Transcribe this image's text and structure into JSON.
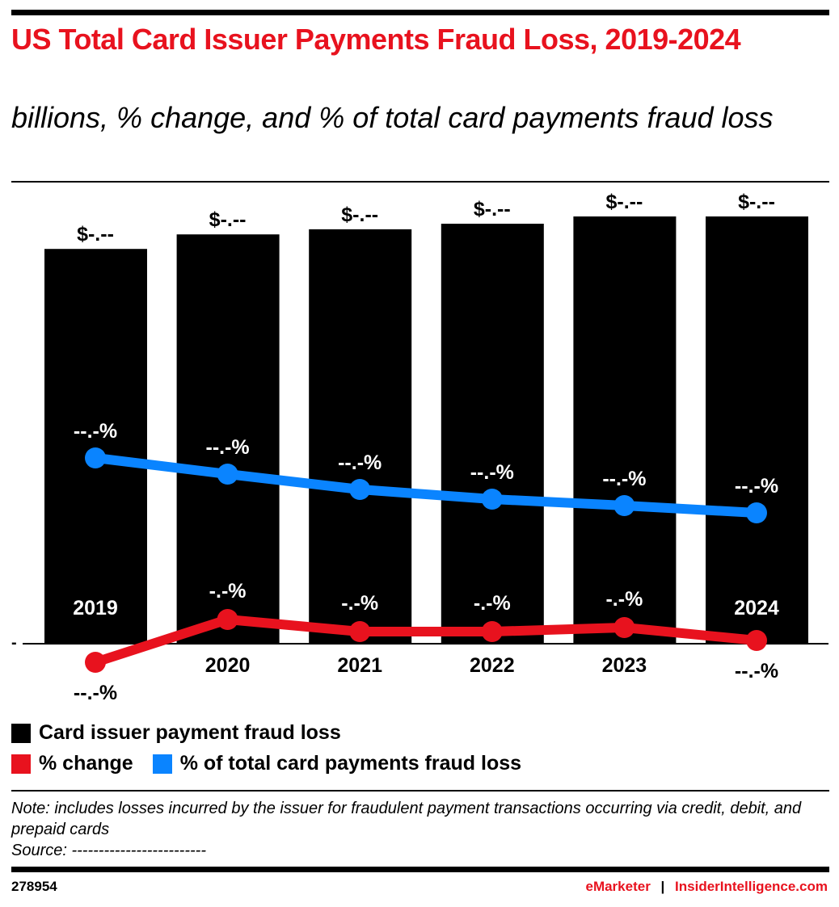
{
  "title": "US Total Card Issuer Payments Fraud Loss, 2019-2024",
  "subtitle": "billions, % change, and % of total card payments fraud loss",
  "colors": {
    "bars": "#000000",
    "pct_change": "#e8121e",
    "pct_total": "#0a84ff",
    "title": "#e8121e"
  },
  "chart_data": {
    "type": "bar",
    "categories": [
      "2019",
      "2020",
      "2021",
      "2022",
      "2023",
      "2024"
    ],
    "y_tick_labels": [
      "-"
    ],
    "grid": false,
    "legend_placement": "bottom",
    "series": [
      {
        "name": "Card issuer payment fraud loss",
        "type": "bar",
        "values": [
          9.24,
          9.58,
          9.7,
          9.83,
          10.0,
          10.0
        ],
        "labels": [
          "$-.--",
          "$-.--",
          "$-.--",
          "$-.--",
          "$-.--",
          "$-.--"
        ]
      },
      {
        "name": "% change",
        "type": "line",
        "values": [
          -2.3,
          3.0,
          1.5,
          1.5,
          2.0,
          0.4
        ],
        "labels": [
          "--.-%",
          "-.-%",
          "-.-%",
          "-.-%",
          "-.-%",
          "--.-%"
        ]
      },
      {
        "name": "% of total card payments fraud loss",
        "type": "line",
        "values": [
          23.0,
          21.0,
          19.1,
          17.9,
          17.1,
          16.2
        ],
        "labels": [
          "--.-%",
          "--.-%",
          "--.-%",
          "--.-%",
          "--.-%",
          "--.-%"
        ]
      }
    ]
  },
  "legend": {
    "items": [
      "Card issuer payment fraud loss",
      "% change",
      "% of total card payments fraud loss"
    ]
  },
  "note": "Note: includes losses incurred by the issuer for fraudulent payment transactions occurring via credit, debit, and prepaid cards",
  "source": "Source: -------------------------",
  "footer": {
    "chart_id": "278954",
    "brand1": "eMarketer",
    "separator": "|",
    "brand2": "InsiderIntelligence.com"
  }
}
